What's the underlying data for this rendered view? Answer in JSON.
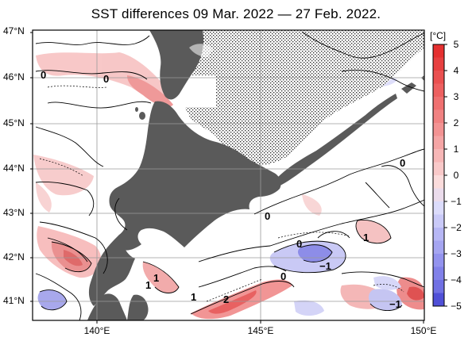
{
  "title": "SST differences 09 Mar. 2022 — 27 Feb. 2022.",
  "lat_labels": [
    "47°N",
    "46°N",
    "45°N",
    "44°N",
    "43°N",
    "42°N",
    "41°N"
  ],
  "lon_labels": [
    "140°E",
    "145°E",
    "150°E"
  ],
  "colorbar": {
    "unit": "[°C]",
    "ticks": [
      "5",
      "4",
      "3",
      "2",
      "1",
      "0",
      "−1",
      "−2",
      "−3",
      "−4",
      "−5"
    ],
    "colors": [
      "#e53030",
      "#ea5050",
      "#ef7070",
      "#f39393",
      "#f7b7b7",
      "#fbdcdc",
      "#dcdcfb",
      "#b7b7f5",
      "#9393ee",
      "#7070e3",
      "#3030cc"
    ]
  },
  "contour_labels": [
    "0",
    "0",
    "0",
    "0",
    "0",
    "0",
    "1",
    "1",
    "1",
    "1",
    "2",
    "−1",
    "−1"
  ],
  "colors": {
    "land": "#5a5a5a",
    "grid": "#9a9a9a"
  }
}
